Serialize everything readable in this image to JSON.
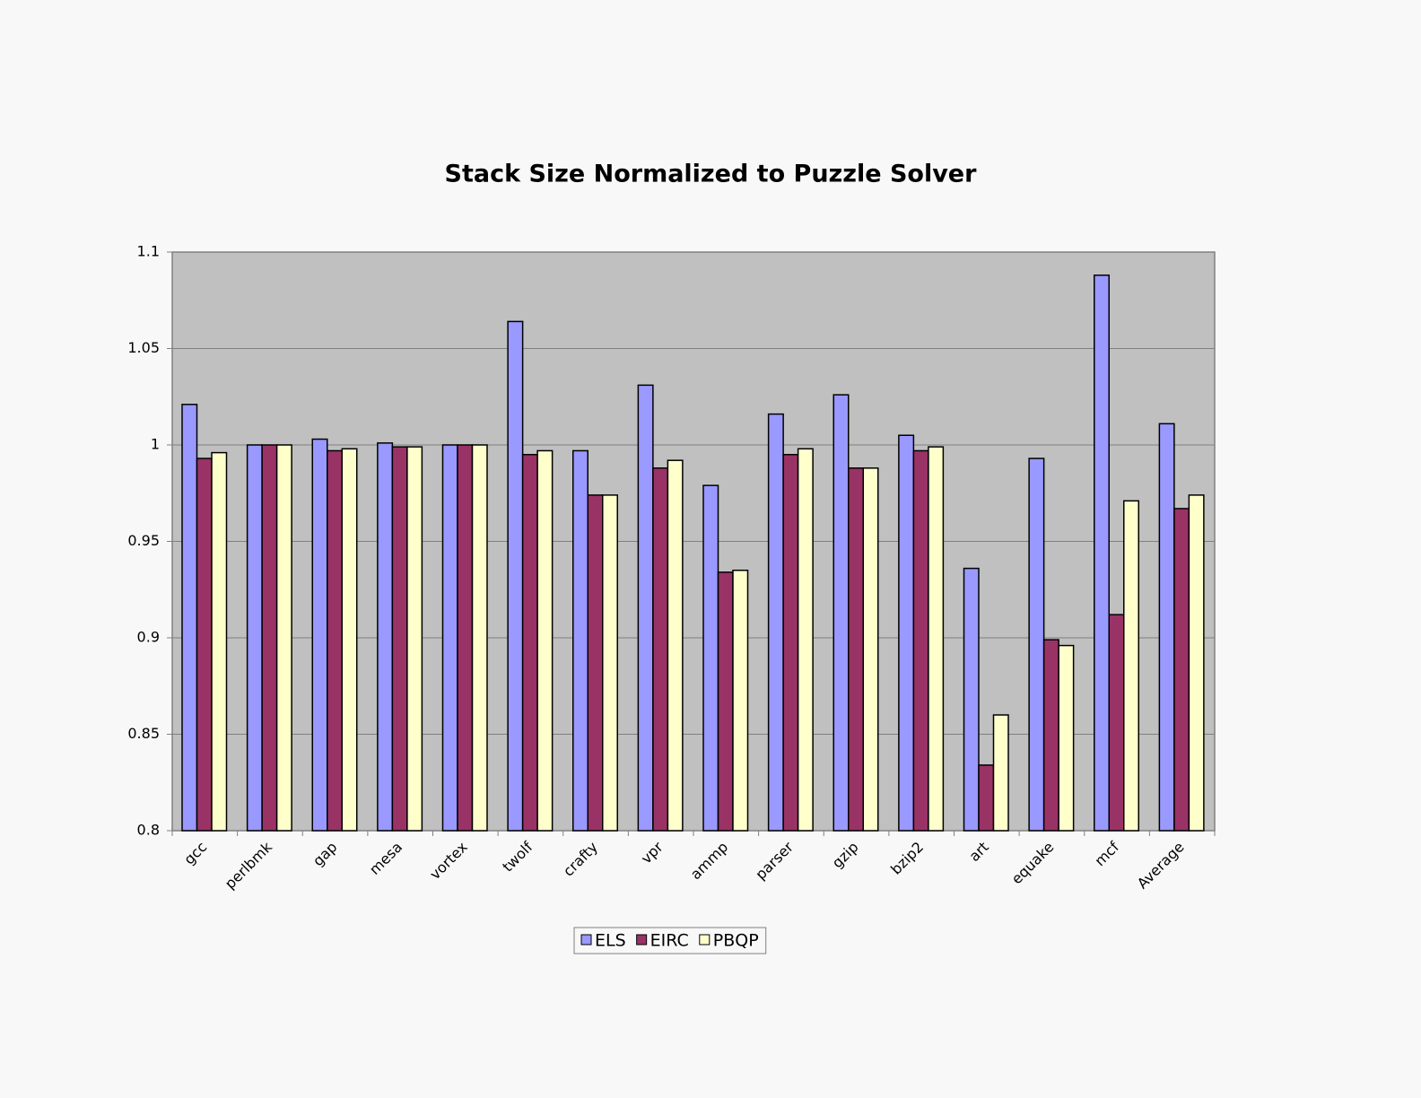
{
  "chart_data": {
    "type": "bar",
    "title": "Stack Size Normalized to Puzzle Solver",
    "categories": [
      "gcc",
      "perlbmk",
      "gap",
      "mesa",
      "vortex",
      "twolf",
      "crafty",
      "vpr",
      "ammp",
      "parser",
      "gzip",
      "bzip2",
      "art",
      "equake",
      "mcf",
      "Average"
    ],
    "series": [
      {
        "name": "ELS",
        "color": "#9999ff",
        "values": [
          1.021,
          1,
          1.003,
          1.001,
          1,
          1.064,
          0.997,
          1.031,
          0.979,
          1.016,
          1.026,
          1.005,
          0.936,
          0.993,
          1.088,
          1.011
        ]
      },
      {
        "name": "EIRC",
        "color": "#993366",
        "values": [
          0.993,
          1,
          0.997,
          0.999,
          1,
          0.995,
          0.974,
          0.988,
          0.934,
          0.995,
          0.988,
          0.997,
          0.834,
          0.899,
          0.912,
          0.967
        ]
      },
      {
        "name": "PBQP",
        "color": "#ffffcc",
        "values": [
          0.996,
          1,
          0.998,
          0.999,
          1,
          0.997,
          0.974,
          0.992,
          0.935,
          0.998,
          0.988,
          0.999,
          0.86,
          0.896,
          0.971,
          0.974
        ]
      }
    ],
    "ylim": [
      0.8,
      1.1
    ],
    "yticks": [
      0.8,
      0.85,
      0.9,
      0.95,
      1,
      1.05,
      1.1
    ],
    "grid": true,
    "legend": "bottom"
  }
}
